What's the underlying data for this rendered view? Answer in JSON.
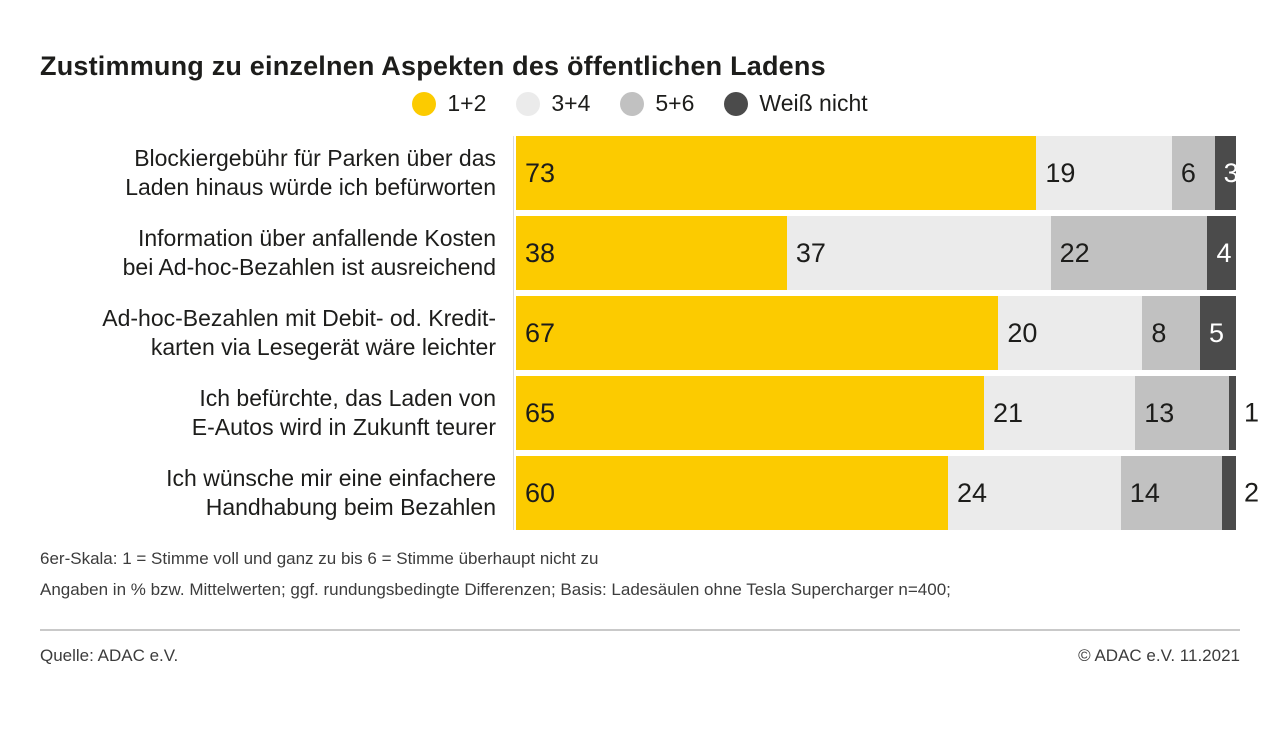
{
  "title": "Zustimmung zu einzelnen Aspekten des öffentlichen Ladens",
  "chart_data": {
    "type": "bar",
    "orientation": "horizontal",
    "stacked": true,
    "unit": "%",
    "title": "Zustimmung zu einzelnen Aspekten des öffentlichen Ladens",
    "legend_position": "top-center",
    "value_labels": "inside-start, outside-right when segment too small",
    "categories": [
      "Blockiergebühr für Parken über das\nLaden hinaus würde ich befürworten",
      "Information über anfallende Kosten\nbei Ad-hoc-Bezahlen ist ausreichend",
      "Ad-hoc-Bezahlen mit Debit- od. Kredit-\nkarten via Lesegerät wäre leichter",
      "Ich befürchte, das Laden von\nE-Autos wird in Zukunft teurer",
      "Ich wünsche mir eine einfachere\nHandhabung beim Bezahlen"
    ],
    "series": [
      {
        "name": "1+2",
        "color": "#FCCB00",
        "label_color": "#1d1d1b",
        "values": [
          73,
          38,
          67,
          65,
          60
        ]
      },
      {
        "name": "3+4",
        "color": "#EBEBEB",
        "label_color": "#1d1d1b",
        "values": [
          19,
          37,
          20,
          21,
          24
        ]
      },
      {
        "name": "5+6",
        "color": "#C1C1C1",
        "label_color": "#1d1d1b",
        "values": [
          6,
          22,
          8,
          13,
          14
        ]
      },
      {
        "name": "Weiß nicht",
        "color": "#4B4B4B",
        "label_color": "#ffffff",
        "values": [
          3,
          4,
          5,
          1,
          2
        ]
      }
    ],
    "xlim": [
      0,
      100
    ]
  },
  "footnotes": [
    "6er-Skala: 1 = Stimme voll und ganz zu bis 6 = Stimme überhaupt nicht zu",
    "Angaben in % bzw. Mittelwerten; ggf. rundungsbedingte Differenzen; Basis: Ladesäulen ohne Tesla Supercharger n=400;"
  ],
  "footer": {
    "source": "Quelle: ADAC e.V.",
    "copyright": "© ADAC e.V. 11.2021"
  }
}
